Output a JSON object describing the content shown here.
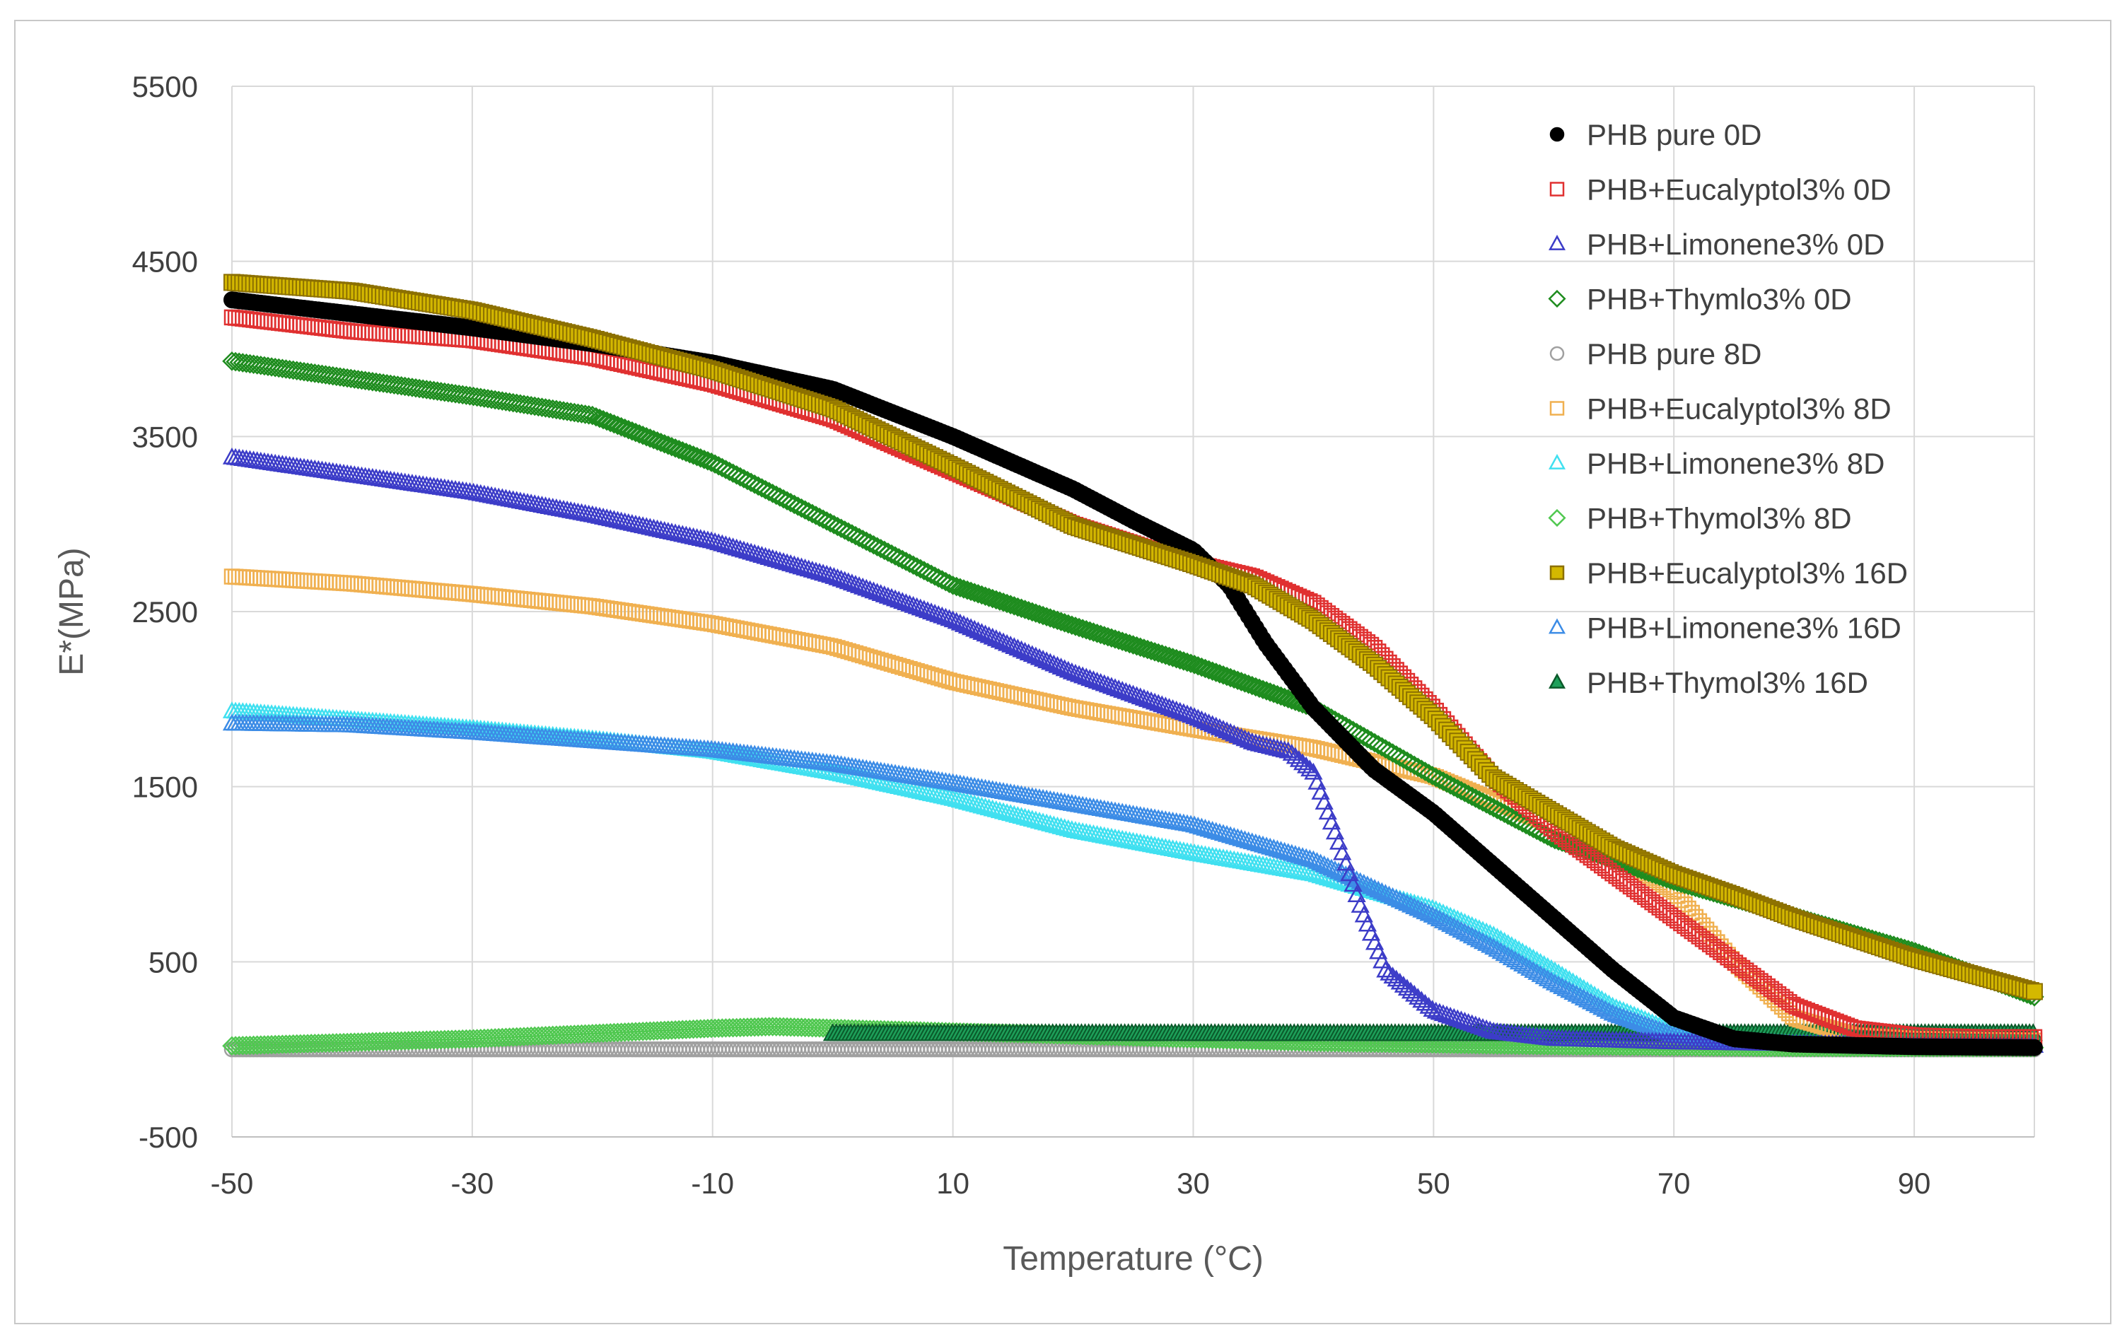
{
  "chart_data": {
    "type": "scatter",
    "title": "",
    "xlabel": "Temperature (°C)",
    "ylabel": "E*(MPa)",
    "xlim": [
      -50,
      100
    ],
    "ylim": [
      -500,
      5500
    ],
    "xticks": [
      -50,
      -30,
      -10,
      10,
      30,
      50,
      70,
      90
    ],
    "xtick_labels": [
      "-50",
      "-30",
      "-10",
      "10",
      "30",
      "50",
      "70",
      "90"
    ],
    "yticks": [
      -500,
      500,
      1500,
      2500,
      3500,
      4500,
      5500
    ],
    "ytick_labels": [
      "-500",
      "500",
      "1500",
      "2500",
      "3500",
      "4500",
      "5500"
    ],
    "grid": true,
    "legend_position": "top-right",
    "series": [
      {
        "name": "PHB pure 0D",
        "marker": "circle",
        "filled": true,
        "color": "#000000",
        "x": [
          -50,
          -40,
          -30,
          -20,
          -10,
          0,
          10,
          20,
          25,
          30,
          33,
          36,
          40,
          45,
          50,
          55,
          60,
          65,
          70,
          75,
          80,
          90,
          100
        ],
        "y": [
          4280,
          4200,
          4120,
          4030,
          3920,
          3770,
          3500,
          3200,
          3020,
          2850,
          2650,
          2320,
          1950,
          1600,
          1350,
          1050,
          750,
          450,
          180,
          60,
          30,
          15,
          10
        ]
      },
      {
        "name": "PHB+Eucalyptol3% 0D",
        "marker": "square",
        "filled": false,
        "color": "#e03030",
        "x": [
          -50,
          -40,
          -30,
          -20,
          -10,
          0,
          10,
          20,
          30,
          35,
          40,
          45,
          50,
          55,
          60,
          65,
          70,
          75,
          80,
          85,
          90,
          95,
          100
        ],
        "y": [
          4180,
          4100,
          4050,
          3950,
          3800,
          3600,
          3300,
          3000,
          2780,
          2700,
          2550,
          2300,
          1950,
          1550,
          1250,
          1000,
          750,
          500,
          250,
          120,
          80,
          70,
          70
        ]
      },
      {
        "name": "PHB+Limonene3% 0D",
        "marker": "triangle",
        "filled": false,
        "color": "#3c3cc8",
        "x": [
          -50,
          -40,
          -30,
          -20,
          -10,
          0,
          10,
          20,
          30,
          35,
          38,
          40,
          42,
          44,
          46,
          50,
          55,
          60,
          70,
          80,
          90,
          100
        ],
        "y": [
          3380,
          3280,
          3180,
          3050,
          2900,
          2700,
          2450,
          2150,
          1900,
          1750,
          1700,
          1580,
          1200,
          800,
          450,
          220,
          100,
          60,
          40,
          30,
          25,
          20
        ]
      },
      {
        "name": "PHB+Thymlo3% 0D",
        "marker": "diamond",
        "filled": false,
        "color": "#1e8c1e",
        "x": [
          -50,
          -40,
          -30,
          -20,
          -10,
          0,
          10,
          20,
          30,
          40,
          50,
          60,
          70,
          80,
          90,
          100
        ],
        "y": [
          3930,
          3830,
          3730,
          3620,
          3350,
          3000,
          2650,
          2420,
          2200,
          1950,
          1560,
          1200,
          960,
          760,
          560,
          300
        ]
      },
      {
        "name": "PHB pure 8D",
        "marker": "circle",
        "filled": false,
        "color": "#a0a0a0",
        "x": [
          -50,
          -30,
          -10,
          10,
          30,
          50,
          70,
          90,
          100
        ],
        "y": [
          0,
          0,
          0,
          0,
          0,
          0,
          0,
          0,
          0
        ]
      },
      {
        "name": "PHB+Eucalyptol3% 8D",
        "marker": "square",
        "filled": false,
        "color": "#f0b050",
        "x": [
          -50,
          -40,
          -30,
          -20,
          -10,
          0,
          10,
          20,
          30,
          40,
          50,
          60,
          65,
          70,
          75,
          80,
          85,
          90,
          100
        ],
        "y": [
          2700,
          2660,
          2600,
          2530,
          2430,
          2300,
          2100,
          1950,
          1830,
          1720,
          1560,
          1280,
          1120,
          900,
          500,
          180,
          80,
          60,
          50
        ]
      },
      {
        "name": "PHB+Limonene3% 8D",
        "marker": "triangle",
        "filled": false,
        "color": "#40e0f0",
        "x": [
          -50,
          -40,
          -30,
          -20,
          -10,
          0,
          10,
          20,
          30,
          40,
          50,
          55,
          60,
          65,
          70,
          75,
          80,
          90,
          100
        ],
        "y": [
          1930,
          1880,
          1830,
          1770,
          1700,
          1580,
          1430,
          1250,
          1120,
          1000,
          800,
          650,
          450,
          240,
          100,
          50,
          30,
          20,
          20
        ]
      },
      {
        "name": "PHB+Thymol3% 8D",
        "marker": "diamond",
        "filled": false,
        "color": "#50c850",
        "x": [
          -50,
          -40,
          -30,
          -20,
          -10,
          -5,
          0,
          5,
          10,
          20,
          30,
          40,
          50,
          60,
          70,
          80,
          90,
          100
        ],
        "y": [
          20,
          40,
          60,
          90,
          120,
          130,
          120,
          110,
          100,
          80,
          60,
          40,
          30,
          20,
          15,
          10,
          10,
          10
        ]
      },
      {
        "name": "PHB+Eucalyptol3% 16D",
        "marker": "square",
        "filled": true,
        "color": "#d4b800",
        "stroke": "#8c7000",
        "x": [
          -50,
          -40,
          -30,
          -20,
          -10,
          0,
          10,
          20,
          30,
          35,
          40,
          45,
          50,
          55,
          60,
          65,
          70,
          75,
          80,
          90,
          100
        ],
        "y": [
          4380,
          4330,
          4220,
          4060,
          3880,
          3660,
          3330,
          2990,
          2770,
          2650,
          2450,
          2200,
          1900,
          1550,
          1350,
          1150,
          1000,
          880,
          750,
          520,
          330
        ]
      },
      {
        "name": "PHB+Limonene3% 16D",
        "marker": "triangle",
        "filled": false,
        "color": "#3c8ce6",
        "x": [
          -50,
          -40,
          -30,
          -20,
          -10,
          0,
          10,
          20,
          30,
          40,
          50,
          55,
          60,
          65,
          70,
          75,
          80,
          90,
          100
        ],
        "y": [
          1860,
          1850,
          1810,
          1760,
          1710,
          1630,
          1520,
          1400,
          1280,
          1080,
          760,
          580,
          380,
          200,
          80,
          40,
          30,
          20,
          20
        ]
      },
      {
        "name": "PHB+Thymol3% 16D",
        "marker": "triangle",
        "filled": true,
        "color": "#1ea05a",
        "stroke": "#0a5a2a",
        "x": [
          0,
          10,
          20,
          30,
          40,
          50,
          60,
          70,
          80,
          90,
          100
        ],
        "y": [
          90,
          90,
          90,
          90,
          90,
          90,
          90,
          90,
          90,
          90,
          90
        ]
      }
    ]
  }
}
